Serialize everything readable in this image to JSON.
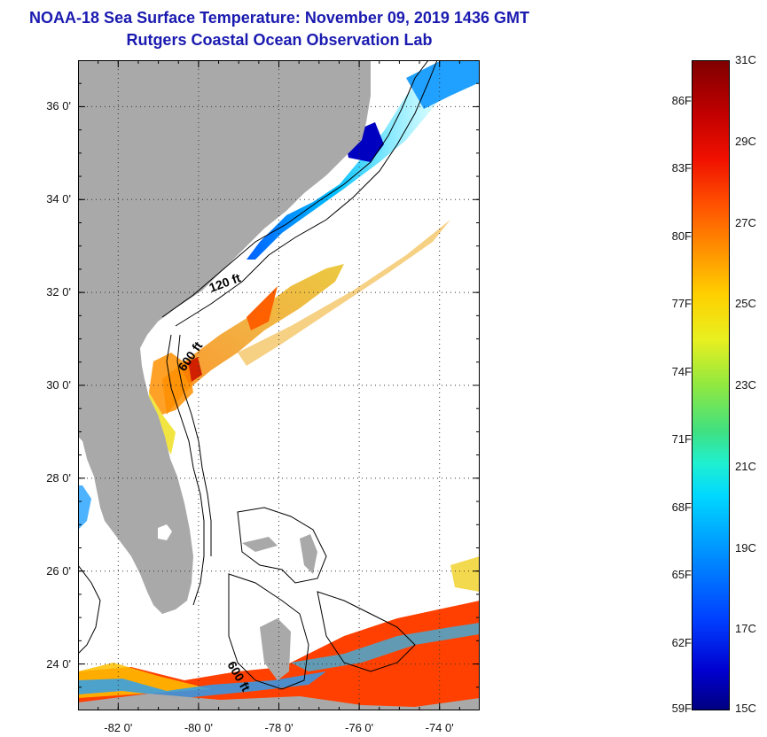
{
  "header": {
    "title": "NOAA-18 Sea Surface Temperature:  November 09, 2019 1436 GMT",
    "subtitle": "Rutgers Coastal Ocean Observation Lab"
  },
  "map": {
    "lon_range": [
      -83,
      -73
    ],
    "lat_range": [
      23,
      37
    ],
    "lat_ticks": [
      {
        "lat": 36,
        "label": "36 0'"
      },
      {
        "lat": 34,
        "label": "34 0'"
      },
      {
        "lat": 32,
        "label": "32 0'"
      },
      {
        "lat": 30,
        "label": "30 0'"
      },
      {
        "lat": 28,
        "label": "28 0'"
      },
      {
        "lat": 26,
        "label": "26 0'"
      },
      {
        "lat": 24,
        "label": "24 0'"
      }
    ],
    "lon_ticks": [
      {
        "lon": -82,
        "label": "-82 0'"
      },
      {
        "lon": -80,
        "label": "-80 0'"
      },
      {
        "lon": -78,
        "label": "-78 0'"
      },
      {
        "lon": -76,
        "label": "-76 0'"
      },
      {
        "lon": -74,
        "label": "-74 0'"
      }
    ],
    "contour_labels": {
      "c120": "120 ft",
      "c600": "600 ft",
      "c600b": "600 ft"
    },
    "colors": {
      "land": "#a9a9a9",
      "ocean_no_data": "#ffffff",
      "contour": "#000000"
    }
  },
  "colorbar": {
    "fahrenheit_labels": [
      "86F",
      "83F",
      "80F",
      "77F",
      "74F",
      "71F",
      "68F",
      "65F",
      "62F",
      "59F"
    ],
    "celsius_labels": [
      "31C",
      "29C",
      "27C",
      "25C",
      "23C",
      "21C",
      "19C",
      "17C",
      "15C"
    ],
    "range_c": [
      15,
      31
    ]
  }
}
